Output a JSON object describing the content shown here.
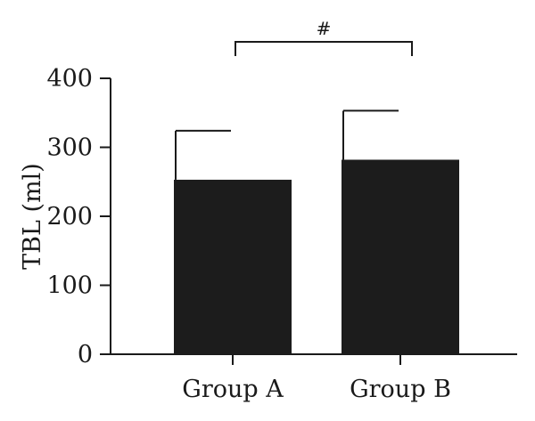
{
  "chart_data": {
    "type": "bar",
    "categories": [
      "Group A",
      "Group B"
    ],
    "values": [
      253,
      282
    ],
    "errors": [
      71,
      71
    ],
    "title": "",
    "xlabel": "",
    "ylabel": "TBL (ml)",
    "ylim": [
      0,
      400
    ],
    "yticks": [
      0,
      100,
      200,
      300,
      400
    ],
    "ytick_labels": [
      "0",
      "100",
      "200",
      "300",
      "400"
    ],
    "grid": false,
    "bar_color": "#1c1c1c",
    "annotation": {
      "text": "#",
      "between": [
        0,
        1
      ]
    }
  }
}
